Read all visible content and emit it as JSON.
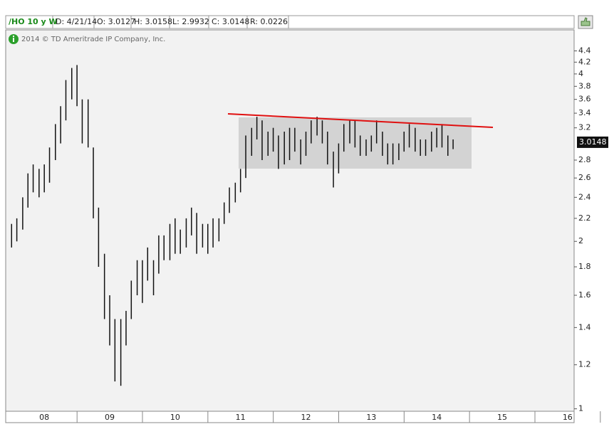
{
  "header": {
    "symbol": "/HO 10 y W",
    "date": "D: 4/21/14",
    "open": "O: 3.0127",
    "high": "H: 3.0158",
    "low": "L: 2.9932",
    "close": "C: 3.0148",
    "range": "R: 0.0226"
  },
  "copyright": "2014 © TD Ameritrade IP Company, Inc.",
  "chart_data": {
    "type": "ohlc",
    "log_scale": true,
    "color": "#111111",
    "x": [
      7.5,
      7.58,
      7.67,
      7.75,
      7.83,
      7.92,
      8.0,
      8.08,
      8.17,
      8.25,
      8.33,
      8.42,
      8.5,
      8.58,
      8.67,
      8.75,
      8.83,
      8.92,
      9.0,
      9.08,
      9.17,
      9.25,
      9.33,
      9.42,
      9.5,
      9.58,
      9.67,
      9.75,
      9.83,
      9.92,
      10.0,
      10.08,
      10.17,
      10.25,
      10.33,
      10.42,
      10.5,
      10.58,
      10.67,
      10.75,
      10.83,
      10.92,
      11.0,
      11.08,
      11.17,
      11.25,
      11.33,
      11.42,
      11.5,
      11.58,
      11.67,
      11.75,
      11.83,
      11.92,
      12.0,
      12.08,
      12.17,
      12.25,
      12.33,
      12.42,
      12.5,
      12.58,
      12.67,
      12.75,
      12.83,
      12.92,
      13.0,
      13.08,
      13.17,
      13.25,
      13.33,
      13.42,
      13.5,
      13.58,
      13.67,
      13.75,
      13.83,
      13.92,
      14.0,
      14.08,
      14.17,
      14.25
    ],
    "high": [
      2.15,
      2.2,
      2.4,
      2.65,
      2.75,
      2.7,
      2.75,
      2.95,
      3.25,
      3.5,
      3.9,
      4.1,
      4.15,
      3.6,
      3.6,
      2.95,
      2.3,
      1.9,
      1.6,
      1.45,
      1.45,
      1.5,
      1.7,
      1.85,
      1.85,
      1.95,
      1.85,
      2.05,
      2.05,
      2.15,
      2.2,
      2.1,
      2.2,
      2.3,
      2.25,
      2.15,
      2.15,
      2.2,
      2.2,
      2.35,
      2.5,
      2.55,
      2.7,
      3.1,
      3.2,
      3.35,
      3.3,
      3.15,
      3.2,
      3.1,
      3.15,
      3.2,
      3.2,
      3.05,
      3.15,
      3.3,
      3.35,
      3.3,
      3.15,
      2.9,
      3.0,
      3.25,
      3.3,
      3.3,
      3.1,
      3.05,
      3.1,
      3.3,
      3.15,
      3.0,
      3.0,
      3.0,
      3.15,
      3.25,
      3.2,
      3.05,
      3.05,
      3.15,
      3.2,
      3.25,
      3.1,
      3.05
    ],
    "low": [
      1.95,
      2.0,
      2.1,
      2.3,
      2.45,
      2.4,
      2.45,
      2.55,
      2.8,
      3.0,
      3.3,
      3.6,
      3.5,
      3.0,
      2.95,
      2.2,
      1.8,
      1.45,
      1.3,
      1.12,
      1.1,
      1.3,
      1.45,
      1.6,
      1.55,
      1.7,
      1.6,
      1.75,
      1.85,
      1.85,
      1.9,
      1.9,
      1.95,
      2.05,
      1.9,
      1.95,
      1.9,
      1.95,
      2.0,
      2.15,
      2.25,
      2.35,
      2.45,
      2.6,
      2.85,
      3.05,
      2.8,
      2.85,
      2.9,
      2.7,
      2.75,
      2.8,
      2.9,
      2.75,
      2.85,
      3.0,
      3.1,
      3.0,
      2.75,
      2.5,
      2.65,
      2.9,
      3.0,
      2.95,
      2.85,
      2.85,
      2.9,
      3.0,
      2.85,
      2.75,
      2.75,
      2.8,
      2.9,
      2.95,
      2.9,
      2.85,
      2.85,
      2.9,
      2.95,
      2.95,
      2.85,
      2.93
    ],
    "last_price": 3.0148,
    "xlim": [
      7.41,
      16.1
    ],
    "xticks": [
      {
        "value": 8,
        "label": "08"
      },
      {
        "value": 9,
        "label": "09"
      },
      10,
      11,
      12,
      13,
      14,
      15,
      16
    ],
    "ylim": [
      0.99,
      4.8
    ],
    "yticks": [
      1,
      1.2,
      1.4,
      1.6,
      1.8,
      2,
      2.2,
      2.4,
      2.6,
      2.8,
      3.2,
      3.4,
      3.6,
      3.8,
      4,
      4.2,
      4.4
    ]
  }
}
